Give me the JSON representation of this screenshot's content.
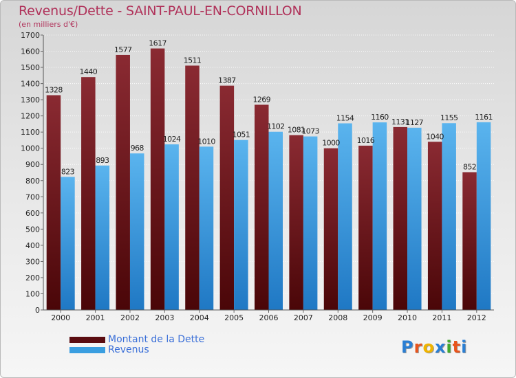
{
  "chart_data": {
    "type": "bar",
    "title": "Revenus/Dette - SAINT-PAUL-EN-CORNILLON",
    "subtitle": "(en milliers d'€)",
    "categories": [
      "2000",
      "2001",
      "2002",
      "2003",
      "2004",
      "2005",
      "2006",
      "2007",
      "2008",
      "2009",
      "2010",
      "2011",
      "2012"
    ],
    "series": [
      {
        "name": "Montant de la Dette",
        "color": "#7a1a22",
        "values": [
          1328,
          1440,
          1577,
          1617,
          1511,
          1387,
          1269,
          1081,
          1000,
          1016,
          1131,
          1040,
          852
        ]
      },
      {
        "name": "Revenus",
        "color": "#3a9ee0",
        "values": [
          823,
          893,
          968,
          1024,
          1010,
          1051,
          1102,
          1073,
          1154,
          1160,
          1127,
          1155,
          1161
        ]
      }
    ],
    "ylim": [
      0,
      1700
    ],
    "yticks": [
      0,
      100,
      200,
      300,
      400,
      500,
      600,
      700,
      800,
      900,
      1000,
      1100,
      1200,
      1300,
      1400,
      1500,
      1600,
      1700
    ],
    "grid": true,
    "legend": "bottom-left"
  },
  "logo": {
    "letters": [
      "P",
      "r",
      "o",
      "x",
      "i",
      "t",
      "i"
    ],
    "colors": [
      "#2a7fd4",
      "#e8541c",
      "#f0b400",
      "#2a7fd4",
      "#43a82e",
      "#e8541c",
      "#2a7fd4"
    ]
  }
}
